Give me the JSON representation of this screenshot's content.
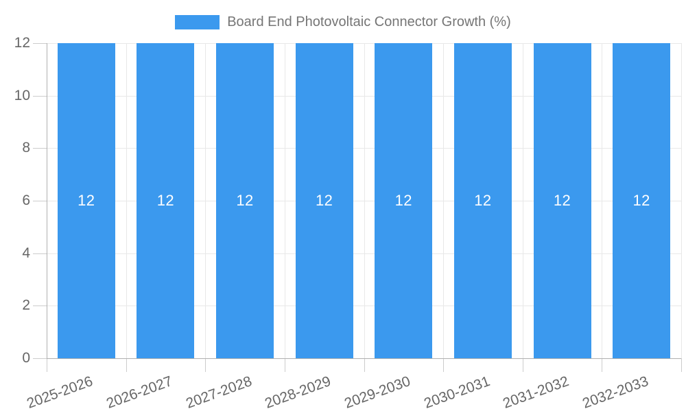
{
  "chart_data": {
    "type": "bar",
    "title": "Board End Photovoltaic Connector Growth (%)",
    "categories": [
      "2025-2026",
      "2026-2027",
      "2027-2028",
      "2028-2029",
      "2029-2030",
      "2030-2031",
      "2031-2032",
      "2032-2033"
    ],
    "series": [
      {
        "name": "Board End Photovoltaic Connector Growth (%)",
        "values": [
          12,
          12,
          12,
          12,
          12,
          12,
          12,
          12
        ]
      }
    ],
    "bar_value_labels": [
      "12",
      "12",
      "12",
      "12",
      "12",
      "12",
      "12",
      "12"
    ],
    "xlabel": "",
    "ylabel": "",
    "ylim": [
      0,
      12
    ],
    "yticks": [
      0,
      2,
      4,
      6,
      8,
      10,
      12
    ],
    "grid": "both",
    "legend_position": "top",
    "x_label_rotation_deg": -20,
    "colors": {
      "bar": "#3b99ee",
      "bar_label_text": "#ffffff",
      "axis_line": "#b0b0b0",
      "grid_line": "#e8e8e8",
      "tick_mark": "#cccccc",
      "axis_text": "#666666",
      "legend_text": "#757575",
      "background": "#ffffff"
    }
  }
}
